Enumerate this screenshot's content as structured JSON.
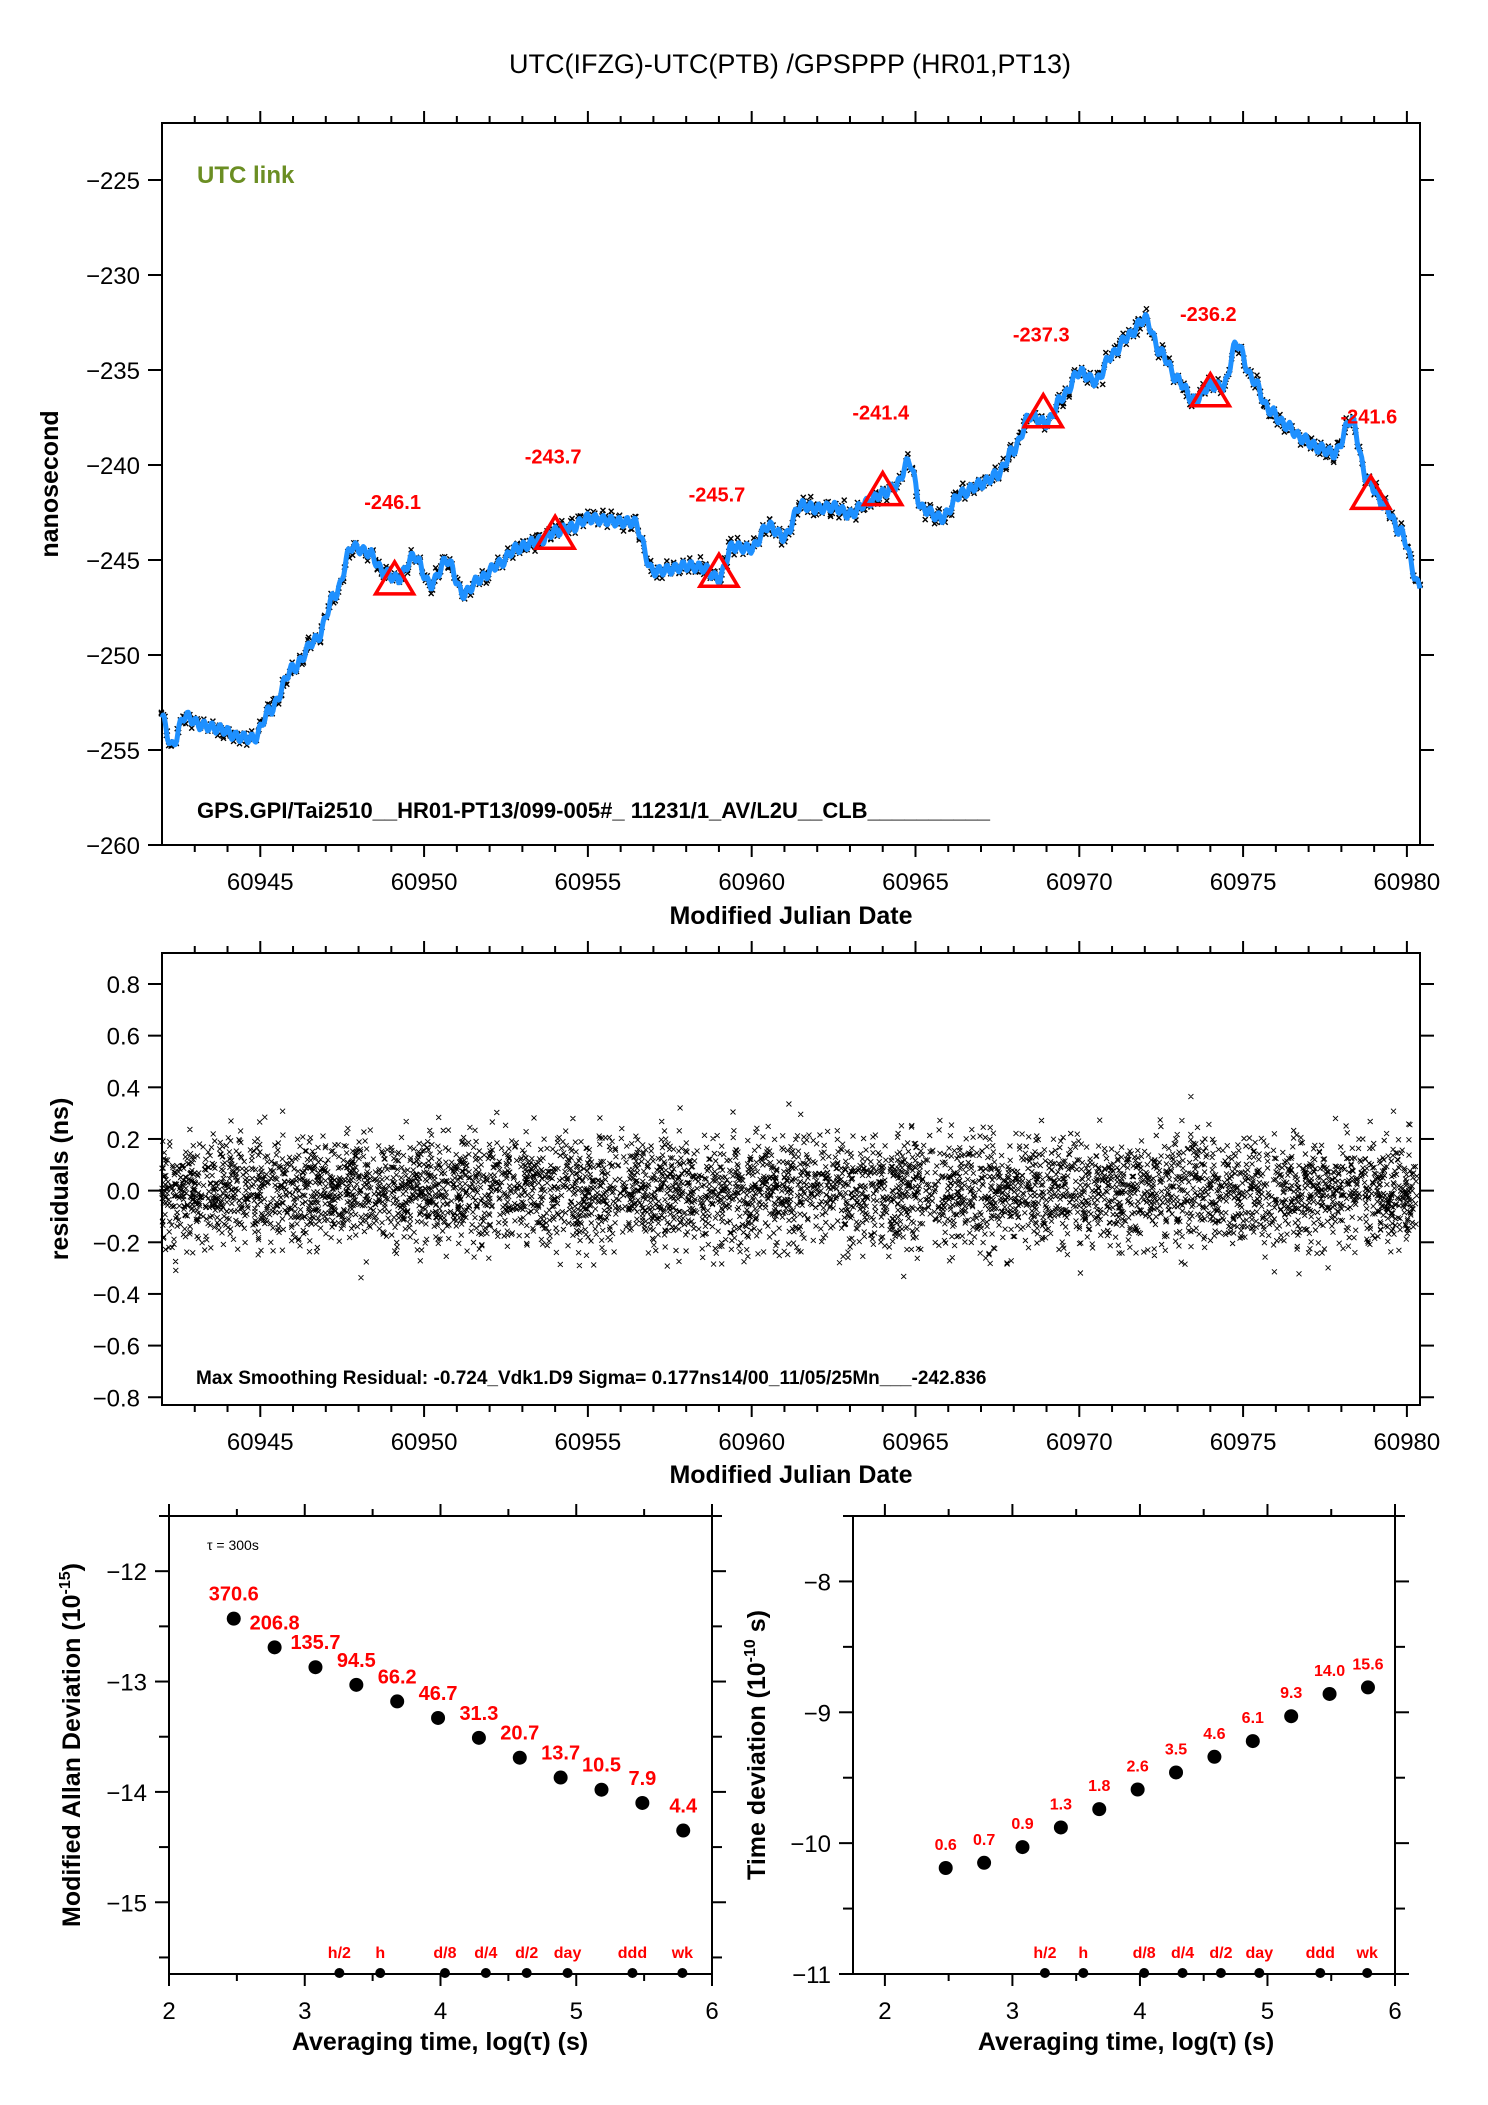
{
  "title": "UTC(IFZG)-UTC(PTB)  /GPSPPP  (HR01,PT13)",
  "colors": {
    "smooth_line": "#1e90ff",
    "raw_points": "#000000",
    "annotation": "#ff0000",
    "link_label": "#6b8e23"
  },
  "chart_data": [
    {
      "id": "timeseries",
      "type": "line",
      "title": "UTC(IFZG)-UTC(PTB)  /GPSPPP  (HR01,PT13)",
      "xlabel": "Modified Julian Date",
      "ylabel": "nanosecond",
      "xlim": [
        60942,
        60980.4
      ],
      "ylim": [
        -260,
        -222
      ],
      "xticks": [
        60945,
        60950,
        60955,
        60960,
        60965,
        60970,
        60975,
        60980
      ],
      "yticks": [
        -260,
        -255,
        -250,
        -245,
        -240,
        -235,
        -230,
        -225
      ],
      "series_label": "UTC link",
      "footer_note": "GPS.GPI/Tai2510__HR01-PT13/099-005#_  11231/1_AV/L2U__CLB__________",
      "trend": {
        "x": [
          60942,
          60942.3,
          60942.7,
          60943.2,
          60943.8,
          60944.3,
          60944.8,
          60945.3,
          60946,
          60946.7,
          60947.3,
          60947.8,
          60948.3,
          60948.8,
          60949.2,
          60949.7,
          60950.2,
          60950.7,
          60951.2,
          60951.7,
          60952.3,
          60952.8,
          60953.5,
          60954,
          60954.5,
          60955,
          60955.5,
          60956,
          60956.4,
          60957,
          60957.5,
          60958,
          60958.5,
          60959,
          60959.4,
          60960,
          60960.5,
          60961,
          60961.5,
          60962,
          60962.5,
          60963,
          60963.5,
          60964,
          60964.4,
          60964.8,
          60965.2,
          60965.8,
          60966.4,
          60967,
          60967.5,
          60968,
          60968.5,
          60969,
          60969.5,
          60970,
          60970.5,
          60971,
          60971.5,
          60972,
          60972.5,
          60973,
          60973.5,
          60974,
          60974.4,
          60974.8,
          60975.3,
          60975.8,
          60976.3,
          60976.8,
          60977.3,
          60977.8,
          60978.3,
          60978.8,
          60979.3,
          60979.8,
          60980.4
        ],
        "y": [
          -253.3,
          -254.8,
          -253.2,
          -253.7,
          -253.9,
          -254.3,
          -254.4,
          -252.9,
          -250.7,
          -249.2,
          -246.8,
          -244.3,
          -244.6,
          -245.7,
          -246.0,
          -244.8,
          -246.3,
          -245.0,
          -246.8,
          -246.0,
          -245.2,
          -244.4,
          -244.0,
          -243.5,
          -243.3,
          -242.8,
          -242.9,
          -243.0,
          -243.0,
          -245.6,
          -245.5,
          -245.3,
          -245.4,
          -246.0,
          -244.3,
          -244.4,
          -243.2,
          -243.8,
          -242.1,
          -242.3,
          -242.2,
          -242.6,
          -242.0,
          -241.5,
          -241.1,
          -239.8,
          -242.3,
          -242.8,
          -241.5,
          -241.0,
          -240.5,
          -239.2,
          -237.4,
          -237.8,
          -236.4,
          -235.1,
          -235.6,
          -234.2,
          -233.2,
          -232.3,
          -234.1,
          -235.5,
          -236.6,
          -235.8,
          -235.9,
          -233.6,
          -235.5,
          -237.1,
          -237.9,
          -238.6,
          -239.1,
          -239.4,
          -237.6,
          -240.8,
          -242.1,
          -243.5,
          -246.4
        ]
      },
      "markers": [
        {
          "x": 60949.1,
          "y": -246.1,
          "label": "-246.1"
        },
        {
          "x": 60954.0,
          "y": -243.7,
          "label": "-243.7"
        },
        {
          "x": 60959.0,
          "y": -245.7,
          "label": "-245.7"
        },
        {
          "x": 60964.0,
          "y": -241.4,
          "label": "-241.4"
        },
        {
          "x": 60968.9,
          "y": -237.3,
          "label": "-237.3"
        },
        {
          "x": 60974.0,
          "y": -236.2,
          "label": "-236.2"
        },
        {
          "x": 60978.9,
          "y": -241.6,
          "label": "-241.6"
        }
      ]
    },
    {
      "id": "residuals",
      "type": "scatter",
      "xlabel": "Modified Julian Date",
      "ylabel": "residuals (ns)",
      "xlim": [
        60942,
        60980.4
      ],
      "ylim": [
        -0.83,
        0.92
      ],
      "xticks": [
        60945,
        60950,
        60955,
        60960,
        60965,
        60970,
        60975,
        60980
      ],
      "yticks": [
        -0.8,
        -0.6,
        -0.4,
        -0.2,
        0.0,
        0.2,
        0.4,
        0.6,
        0.8
      ],
      "ytick_labels": [
        "−0.8",
        "−0.6",
        "−0.4",
        "−0.2",
        "0.0",
        "0.2",
        "0.4",
        "0.6",
        "0.8"
      ],
      "sigma_ns": 0.177,
      "max_residual": -0.724,
      "footer_note": "Max Smoothing Residual: -0.724_Vdk1.D9  Sigma= 0.177ns14/00_11/05/25Mn___-242.836"
    },
    {
      "id": "mdev",
      "type": "scatter",
      "xlabel": "Averaging time, log(τ) (s)",
      "ylabel": "Modified Allan Deviation (10",
      "ylabel_sup": "-15",
      "ylabel_end": ")",
      "xlim": [
        2,
        6
      ],
      "ylim": [
        -15.65,
        -11.5
      ],
      "xticks": [
        2,
        3,
        4,
        5,
        6
      ],
      "yticks": [
        -15,
        -14,
        -13,
        -12
      ],
      "tau_note": "τ = 300s",
      "x": [
        2.477,
        2.778,
        3.079,
        3.38,
        3.681,
        3.982,
        4.283,
        4.584,
        4.885,
        5.186,
        5.487,
        5.788
      ],
      "y": [
        -12.43,
        -12.69,
        -12.87,
        -13.03,
        -13.18,
        -13.33,
        -13.51,
        -13.69,
        -13.87,
        -13.98,
        -14.1,
        -14.35
      ],
      "labels": [
        "370.6",
        "206.8",
        "135.7",
        "94.5",
        "66.2",
        "46.7",
        "31.3",
        "20.7",
        "13.7",
        "10.5",
        "7.9",
        "4.4"
      ],
      "time_markers": [
        {
          "x": 3.255,
          "label": "h/2"
        },
        {
          "x": 3.556,
          "label": "h"
        },
        {
          "x": 4.033,
          "label": "d/8"
        },
        {
          "x": 4.334,
          "label": "d/4"
        },
        {
          "x": 4.635,
          "label": "d/2"
        },
        {
          "x": 4.936,
          "label": "day"
        },
        {
          "x": 5.414,
          "label": "ddd"
        },
        {
          "x": 5.782,
          "label": "wk"
        }
      ]
    },
    {
      "id": "tdev",
      "type": "scatter",
      "xlabel": "Averaging time, log(τ) (s)",
      "ylabel": "Time deviation (10",
      "ylabel_sup": "-10",
      "ylabel_end": " s)",
      "xlim": [
        1.75,
        6
      ],
      "ylim": [
        -11,
        -7.5
      ],
      "xticks": [
        2,
        3,
        4,
        5,
        6
      ],
      "yticks": [
        -11,
        -10,
        -9,
        -8
      ],
      "x": [
        2.477,
        2.778,
        3.079,
        3.38,
        3.681,
        3.982,
        4.283,
        4.584,
        4.885,
        5.186,
        5.487,
        5.788
      ],
      "y": [
        -10.19,
        -10.15,
        -10.03,
        -9.88,
        -9.74,
        -9.59,
        -9.46,
        -9.34,
        -9.22,
        -9.03,
        -8.86,
        -8.81
      ],
      "labels": [
        "0.6",
        "0.7",
        "0.9",
        "1.3",
        "1.8",
        "2.6",
        "3.5",
        "4.6",
        "6.1",
        "9.3",
        "14.0",
        "15.6"
      ],
      "time_markers": [
        {
          "x": 3.255,
          "label": "h/2"
        },
        {
          "x": 3.556,
          "label": "h"
        },
        {
          "x": 4.033,
          "label": "d/8"
        },
        {
          "x": 4.334,
          "label": "d/4"
        },
        {
          "x": 4.635,
          "label": "d/2"
        },
        {
          "x": 4.936,
          "label": "day"
        },
        {
          "x": 5.414,
          "label": "ddd"
        },
        {
          "x": 5.782,
          "label": "wk"
        }
      ]
    }
  ]
}
